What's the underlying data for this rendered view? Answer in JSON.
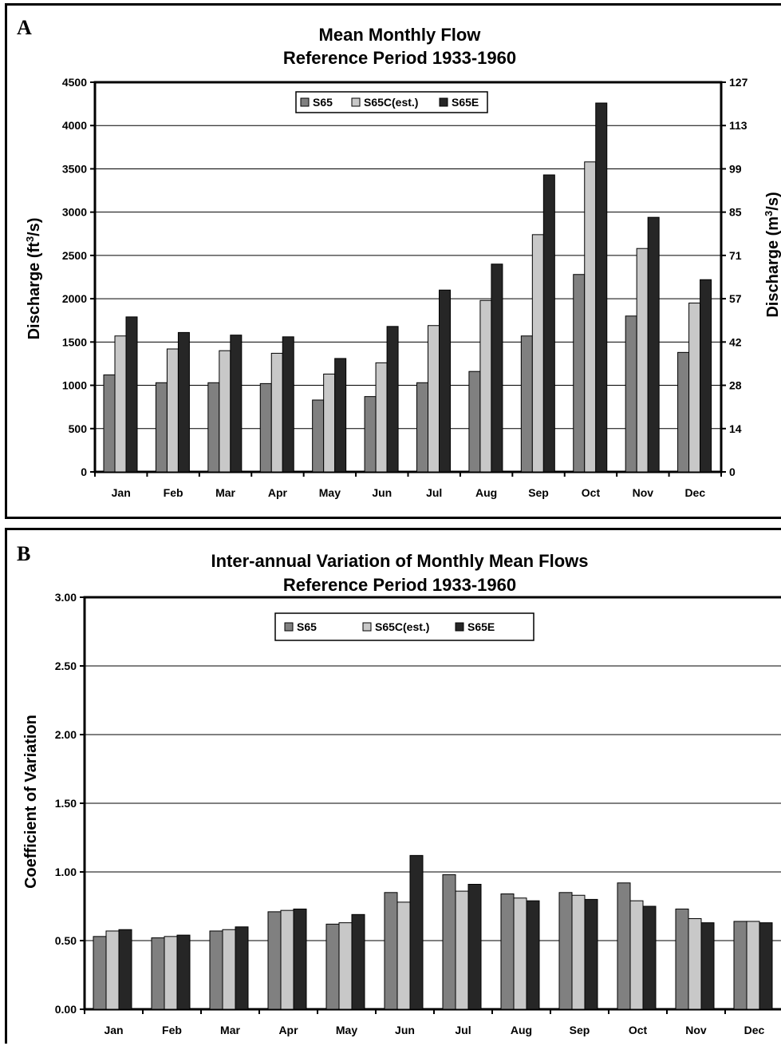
{
  "colors": {
    "S65": "#808080",
    "S65C": "#c8c8c8",
    "S65E": "#262626"
  },
  "chart_data": [
    {
      "panel_label": "A",
      "type": "bar",
      "title": "Mean Monthly Flow",
      "subtitle": "Reference Period 1933-1960",
      "ylabel": "Discharge (ft³/s)",
      "ylabel_base": "Discharge (ft",
      "ylabel_sup": "3",
      "ylabel_end": "/s)",
      "y2label_base": "Discharge (m",
      "y2label_sup": "3",
      "y2label_end": "/s)",
      "ylim": [
        0,
        4500
      ],
      "yticks": [
        "0",
        "500",
        "1000",
        "1500",
        "2000",
        "2500",
        "3000",
        "3500",
        "4000",
        "4500"
      ],
      "y2ticks": [
        "0",
        "14",
        "28",
        "42",
        "57",
        "71",
        "85",
        "99",
        "113",
        "127"
      ],
      "categories": [
        "Jan",
        "Feb",
        "Mar",
        "Apr",
        "May",
        "Jun",
        "Jul",
        "Aug",
        "Sep",
        "Oct",
        "Nov",
        "Dec"
      ],
      "series": [
        {
          "name": "S65",
          "values": [
            1120,
            1030,
            1030,
            1020,
            830,
            870,
            1030,
            1160,
            1570,
            2280,
            1800,
            1380
          ]
        },
        {
          "name": "S65C(est.)",
          "values": [
            1570,
            1420,
            1400,
            1370,
            1130,
            1260,
            1690,
            1980,
            2740,
            3580,
            2580,
            1950
          ]
        },
        {
          "name": "S65E",
          "values": [
            1790,
            1610,
            1580,
            1560,
            1310,
            1680,
            2100,
            2400,
            3430,
            4260,
            2940,
            2220
          ]
        }
      ],
      "legend": "top-center",
      "grid": true
    },
    {
      "panel_label": "B",
      "type": "bar",
      "title": "Inter-annual Variation of Monthly Mean Flows",
      "subtitle": "Reference Period  1933-1960",
      "ylabel": "Coefficient of Variation",
      "ylim": [
        0,
        3
      ],
      "yticks": [
        "0.00",
        "0.50",
        "1.00",
        "1.50",
        "2.00",
        "2.50",
        "3.00"
      ],
      "categories": [
        "Jan",
        "Feb",
        "Mar",
        "Apr",
        "May",
        "Jun",
        "Jul",
        "Aug",
        "Sep",
        "Oct",
        "Nov",
        "Dec"
      ],
      "series": [
        {
          "name": "S65",
          "values": [
            0.53,
            0.52,
            0.57,
            0.71,
            0.62,
            0.85,
            0.98,
            0.84,
            0.85,
            0.92,
            0.73,
            0.64
          ]
        },
        {
          "name": "S65C(est.)",
          "values": [
            0.57,
            0.53,
            0.58,
            0.72,
            0.63,
            0.78,
            0.86,
            0.81,
            0.83,
            0.79,
            0.66,
            0.64
          ]
        },
        {
          "name": "S65E",
          "values": [
            0.58,
            0.54,
            0.6,
            0.73,
            0.69,
            1.12,
            0.91,
            0.79,
            0.8,
            0.75,
            0.63,
            0.63
          ]
        }
      ],
      "legend": "top-center",
      "grid": true
    }
  ]
}
